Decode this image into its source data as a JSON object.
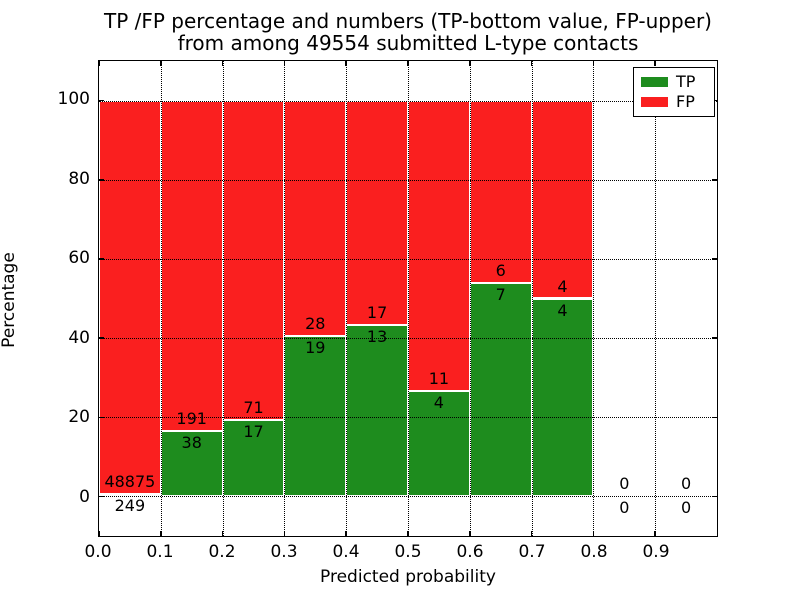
{
  "chart_data": {
    "type": "bar",
    "subtype": "stacked-percentage-histogram",
    "title_line1": "TP /FP percentage and numbers (TP-bottom value, FP-upper)",
    "title_line2": "from among 49554 submitted L-type contacts",
    "total_submitted": 49554,
    "xlabel": "Predicted probability",
    "ylabel": "Percentage",
    "xlim": [
      0.0,
      1.0
    ],
    "ylim": [
      -10,
      110
    ],
    "yticks": [
      0,
      20,
      40,
      60,
      80,
      100
    ],
    "ytick_labels": [
      "0",
      "20",
      "40",
      "60",
      "80",
      "100"
    ],
    "xticks": [
      0.0,
      0.1,
      0.2,
      0.3,
      0.4,
      0.5,
      0.6,
      0.7,
      0.8,
      0.9
    ],
    "xtick_labels": [
      "0.0",
      "0.1",
      "0.2",
      "0.3",
      "0.4",
      "0.5",
      "0.6",
      "0.7",
      "0.8",
      "0.9"
    ],
    "grid": true,
    "annotation_note": "FP count shown above TP/FP boundary, TP count below",
    "bins": [
      {
        "x0": 0.0,
        "x1": 0.1,
        "tp": 249,
        "fp": 48875
      },
      {
        "x0": 0.1,
        "x1": 0.2,
        "tp": 38,
        "fp": 191
      },
      {
        "x0": 0.2,
        "x1": 0.3,
        "tp": 17,
        "fp": 71
      },
      {
        "x0": 0.3,
        "x1": 0.4,
        "tp": 19,
        "fp": 28
      },
      {
        "x0": 0.4,
        "x1": 0.5,
        "tp": 13,
        "fp": 17
      },
      {
        "x0": 0.5,
        "x1": 0.6,
        "tp": 4,
        "fp": 11
      },
      {
        "x0": 0.6,
        "x1": 0.7,
        "tp": 7,
        "fp": 6
      },
      {
        "x0": 0.7,
        "x1": 0.8,
        "tp": 4,
        "fp": 4
      },
      {
        "x0": 0.8,
        "x1": 0.9,
        "tp": 0,
        "fp": 0
      },
      {
        "x0": 0.9,
        "x1": 1.0,
        "tp": 0,
        "fp": 0
      }
    ],
    "colors": {
      "tp": "#1e8c1e",
      "fp": "#fa1f1f",
      "bar_edge": "#ffffff",
      "grid": "#000000",
      "text": "#000000",
      "background": "#ffffff"
    },
    "legend": [
      {
        "label": "TP",
        "color": "#1e8c1e"
      },
      {
        "label": "FP",
        "color": "#fa1f1f"
      }
    ],
    "legend_position": "upper right"
  }
}
